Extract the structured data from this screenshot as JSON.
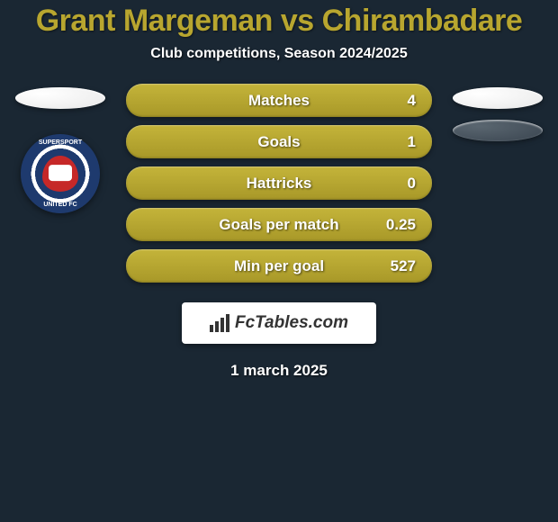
{
  "header": {
    "title": "Grant Margeman vs Chirambadare",
    "subtitle": "Club competitions, Season 2024/2025"
  },
  "colors": {
    "accent": "#b8a62f",
    "bar_gradient_top": "#c4b43a",
    "bar_gradient_bottom": "#a89828",
    "background": "#1a2733",
    "text_white": "#ffffff"
  },
  "left_player": {
    "club_name": "SUPERSPORT UNITED FC",
    "club_top_text": "SUPERSPORT",
    "club_bottom_text": "UNITED FC"
  },
  "stats": [
    {
      "label": "Matches",
      "value": "4"
    },
    {
      "label": "Goals",
      "value": "1"
    },
    {
      "label": "Hattricks",
      "value": "0"
    },
    {
      "label": "Goals per match",
      "value": "0.25"
    },
    {
      "label": "Min per goal",
      "value": "527"
    }
  ],
  "brand": {
    "text": "FcTables.com"
  },
  "date": "1 march 2025"
}
